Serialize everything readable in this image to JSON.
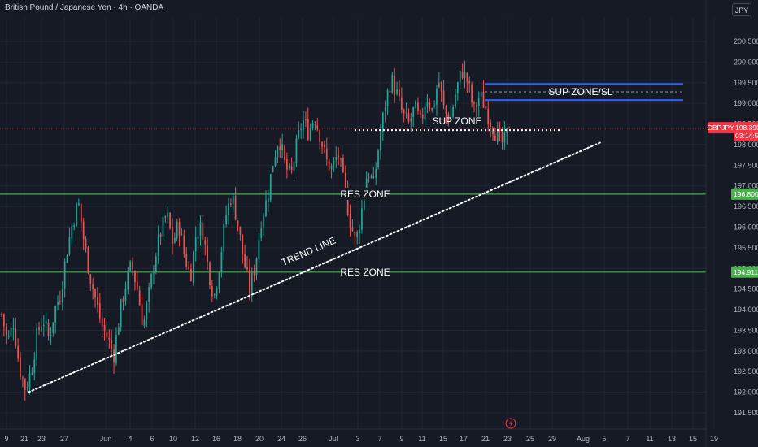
{
  "header": {
    "symbol_title": "British Pound / Japanese Yen · 4h · OANDA",
    "currency": "JPY"
  },
  "price_tags": {
    "last_symbol": "GBPJPY",
    "last_price": "198.390",
    "countdown": "03:14:59",
    "level_upper": "196.800",
    "level_lower": "194.911"
  },
  "colors": {
    "background": "#161a25",
    "grid": "#222633",
    "up": "#26a69a",
    "down": "#ef5350",
    "support_line": "#4caf50",
    "zone_line": "#2962ff",
    "last_price": "#f23645",
    "tag_green": "#4caf50"
  },
  "icons": {
    "alert": "lightning-icon"
  },
  "chart_data": {
    "type": "candlestick",
    "title": "",
    "xlabel": "",
    "ylabel": "",
    "y_axis_ticks": [
      191.5,
      192.0,
      192.5,
      193.0,
      193.5,
      194.0,
      194.5,
      195.0,
      195.5,
      196.0,
      196.5,
      197.0,
      197.5,
      198.0,
      198.5,
      199.0,
      199.5,
      200.0,
      200.5
    ],
    "ylim": [
      191.3,
      200.9
    ],
    "x_axis_ticks": [
      "9",
      "21",
      "23",
      "27",
      "Jun",
      "4",
      "6",
      "10",
      "12",
      "16",
      "18",
      "20",
      "24",
      "26",
      "Jul",
      "3",
      "7",
      "9",
      "11",
      "15",
      "17",
      "21",
      "23",
      "25",
      "29",
      "Aug",
      "5",
      "7",
      "11",
      "13",
      "15",
      "19"
    ],
    "last_price": 198.39,
    "horizontal_levels": [
      196.8,
      194.911
    ],
    "zones": [
      {
        "label": "SUP ZONE/SL",
        "top": 199.47,
        "bottom": 199.08
      },
      {
        "label": "SUP ZONE",
        "level": 198.35
      }
    ],
    "annotations": [
      "RES ZONE",
      "RES ZONE",
      "TREND LINE",
      "SUP ZONE",
      "SUP ZONE/SL"
    ],
    "trend_line": {
      "label": "TREND LINE",
      "start": {
        "x": "21",
        "y": 192.0
      },
      "end": {
        "x": "25",
        "y": 198.05
      }
    },
    "price_path": [
      193.9,
      193.2,
      193.7,
      192.6,
      192.1,
      192.5,
      193.4,
      193.8,
      193.3,
      194.0,
      194.4,
      195.4,
      196.1,
      196.6,
      195.6,
      194.8,
      194.2,
      193.6,
      193.3,
      192.9,
      193.9,
      194.6,
      195.1,
      194.5,
      193.6,
      194.4,
      195.3,
      195.9,
      196.3,
      195.6,
      196.1,
      195.3,
      194.8,
      195.9,
      196.0,
      195.0,
      194.3,
      195.2,
      196.3,
      196.8,
      196.1,
      195.2,
      194.5,
      195.1,
      196.2,
      196.7,
      197.6,
      198.2,
      197.5,
      197.2,
      198.0,
      198.6,
      198.3,
      198.7,
      198.2,
      197.6,
      197.4,
      197.8,
      197.0,
      196.2,
      195.6,
      196.4,
      197.4,
      197.0,
      198.1,
      199.0,
      199.6,
      199.2,
      198.7,
      198.5,
      198.9,
      198.5,
      199.2,
      198.8,
      199.6,
      198.8,
      198.6,
      199.3,
      199.8,
      199.5,
      198.8,
      199.2,
      198.9,
      198.5,
      198.2,
      198.0,
      198.39
    ]
  }
}
